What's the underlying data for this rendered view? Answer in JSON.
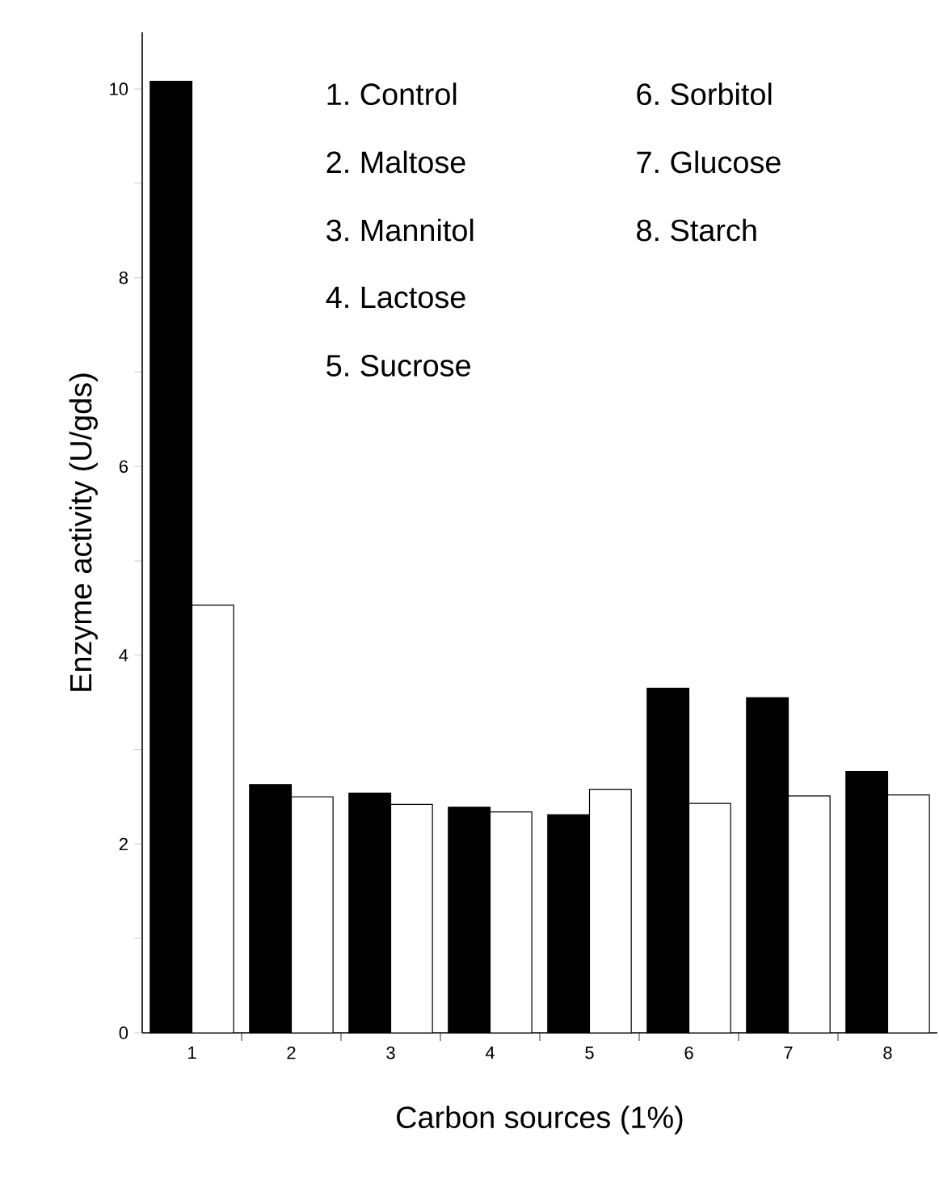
{
  "chart_data": {
    "type": "bar",
    "xlabel": "Carbon sources (1%)",
    "ylabel": "Enzyme activity (U/gds)",
    "categories": [
      "1",
      "2",
      "3",
      "4",
      "5",
      "6",
      "7",
      "8"
    ],
    "series": [
      {
        "color": "#000000",
        "values": [
          10.08,
          2.63,
          2.54,
          2.39,
          2.31,
          3.65,
          3.55,
          2.77
        ]
      },
      {
        "color": "#ffffff",
        "values": [
          4.53,
          2.5,
          2.42,
          2.34,
          2.58,
          2.43,
          2.51,
          2.52
        ]
      }
    ],
    "ylim": [
      0,
      10.6
    ],
    "yticks": [
      0,
      2,
      4,
      6,
      8,
      10
    ],
    "grid": false,
    "annotations": [
      "1. Control",
      "2. Maltose",
      "3. Mannitol",
      "4. Lactose",
      "5. Sucrose",
      "6. Sorbitol",
      "7. Glucose",
      "8. Starch"
    ]
  }
}
